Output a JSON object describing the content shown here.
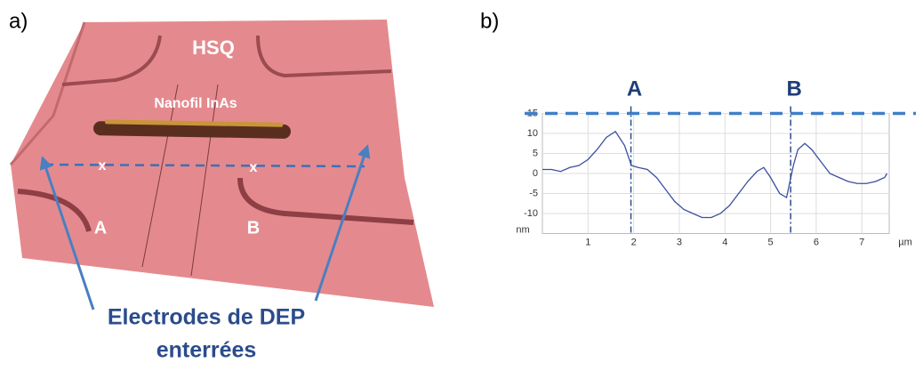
{
  "panel_a": {
    "label": "a)",
    "labels": {
      "hsq": "HSQ",
      "nanowire": "Nanofil InAs",
      "mark_a": "x",
      "mark_b": "x",
      "electrode_a": "A",
      "electrode_b": "B"
    },
    "caption": [
      "Electrodes de DEP",
      "enterrées"
    ]
  },
  "chart_data": {
    "type": "line",
    "panel_label": "b)",
    "x": [
      0,
      0.2,
      0.4,
      0.6,
      0.8,
      1.0,
      1.2,
      1.4,
      1.6,
      1.8,
      1.95,
      2.1,
      2.3,
      2.5,
      2.7,
      2.9,
      3.1,
      3.3,
      3.5,
      3.7,
      3.9,
      4.1,
      4.3,
      4.5,
      4.7,
      4.85,
      5.0,
      5.2,
      5.35,
      5.5,
      5.6,
      5.75,
      5.9,
      6.1,
      6.3,
      6.5,
      6.7,
      6.9,
      7.1,
      7.3,
      7.5,
      7.55
    ],
    "series": [
      {
        "color": "#3b4fa0",
        "values": [
          1,
          1,
          0.5,
          1.5,
          2,
          3.5,
          6,
          9,
          10.5,
          7,
          2,
          1.5,
          1,
          -1,
          -4,
          -7,
          -9,
          -10,
          -11,
          -11,
          -10,
          -8,
          -5,
          -2,
          0.5,
          1.5,
          -1,
          -5,
          -6,
          2,
          6,
          7.5,
          6,
          3,
          0,
          -1,
          -2,
          -2.5,
          -2.5,
          -2,
          -1,
          0
        ]
      }
    ],
    "xlim": [
      0,
      7.6
    ],
    "ylim": [
      -15,
      15
    ],
    "xticks": [
      1,
      2,
      3,
      4,
      5,
      6,
      7
    ],
    "yticks": [
      15,
      10,
      5,
      0,
      -5,
      -10
    ],
    "x_unit": "µm",
    "y_unit": "nm",
    "grid": true,
    "markers": [
      {
        "label": "A",
        "x": 1.94
      },
      {
        "label": "B",
        "x": 5.44
      }
    ],
    "reference_y": 15
  }
}
